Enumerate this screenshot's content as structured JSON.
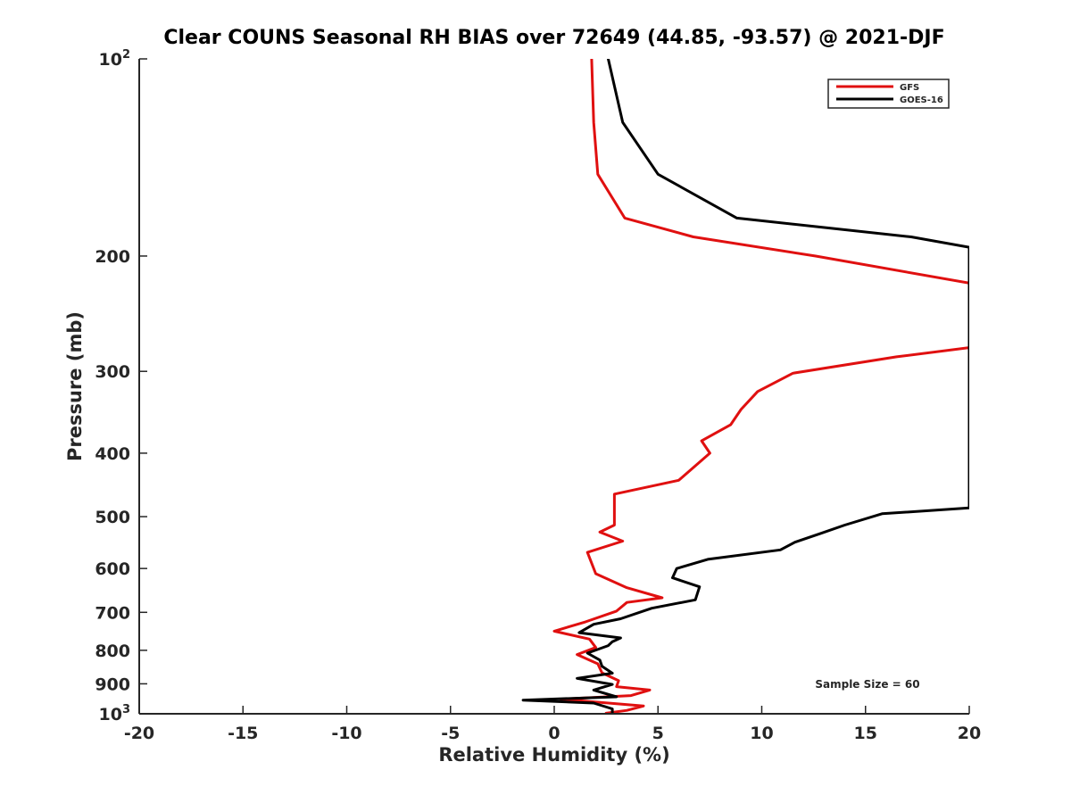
{
  "chart_data": {
    "type": "line",
    "title": "Clear COUNS Seasonal RH BIAS over 72649 (44.85, -93.57) @ 2021-DJF",
    "xlabel": "Relative Humidity (%)",
    "ylabel": "Pressure (mb)",
    "xlim": [
      -20,
      20
    ],
    "ylim": [
      100,
      1000
    ],
    "yscale": "log",
    "y_reversed": true,
    "x_ticks": [
      "-20",
      "-15",
      "-10",
      "-5",
      "0",
      "5",
      "10",
      "15",
      "20"
    ],
    "y_ticks": [
      {
        "value": 100,
        "base": "10",
        "exp": "2"
      },
      {
        "value": 200,
        "label": "200"
      },
      {
        "value": 300,
        "label": "300"
      },
      {
        "value": 400,
        "label": "400"
      },
      {
        "value": 500,
        "label": "500"
      },
      {
        "value": 600,
        "label": "600"
      },
      {
        "value": 700,
        "label": "700"
      },
      {
        "value": 800,
        "label": "800"
      },
      {
        "value": 900,
        "label": "900"
      },
      {
        "value": 1000,
        "base": "10",
        "exp": "3"
      }
    ],
    "legend_position": "top-right",
    "annotation": "Sample Size = 60",
    "series": [
      {
        "name": "GFS",
        "color": "#e01010",
        "points": [
          [
            1.8,
            100
          ],
          [
            1.9,
            125
          ],
          [
            2.1,
            150
          ],
          [
            3.4,
            175
          ],
          [
            6.7,
            187
          ],
          [
            12.6,
            200
          ],
          [
            20.0,
            220
          ],
          [
            20.0,
            276
          ],
          [
            16.5,
            285
          ],
          [
            11.5,
            302
          ],
          [
            9.8,
            322
          ],
          [
            9.0,
            343
          ],
          [
            8.5,
            362
          ],
          [
            7.1,
            383
          ],
          [
            7.5,
            400
          ],
          [
            6.0,
            440
          ],
          [
            2.9,
            462
          ],
          [
            2.9,
            515
          ],
          [
            2.2,
            528
          ],
          [
            3.3,
            545
          ],
          [
            1.6,
            567
          ],
          [
            2.0,
            611
          ],
          [
            3.5,
            642
          ],
          [
            5.2,
            665
          ],
          [
            3.5,
            676
          ],
          [
            3.0,
            697
          ],
          [
            1.5,
            724
          ],
          [
            0.0,
            748
          ],
          [
            1.7,
            769
          ],
          [
            2.0,
            792
          ],
          [
            1.1,
            812
          ],
          [
            2.1,
            839
          ],
          [
            2.3,
            866
          ],
          [
            3.1,
            890
          ],
          [
            3.0,
            909
          ],
          [
            4.6,
            920
          ],
          [
            3.7,
            938
          ],
          [
            0.3,
            950
          ],
          [
            4.3,
            973
          ],
          [
            3.5,
            988
          ],
          [
            2.5,
            998
          ]
        ]
      },
      {
        "name": "GOES-16",
        "color": "#000000",
        "points": [
          [
            2.6,
            100
          ],
          [
            3.3,
            125
          ],
          [
            5.0,
            150
          ],
          [
            8.8,
            175
          ],
          [
            17.2,
            187
          ],
          [
            20.0,
            194
          ],
          [
            20.0,
            485
          ],
          [
            15.8,
            495
          ],
          [
            14.0,
            515
          ],
          [
            12.8,
            531
          ],
          [
            11.6,
            547
          ],
          [
            10.9,
            562
          ],
          [
            7.4,
            581
          ],
          [
            5.9,
            600
          ],
          [
            5.7,
            620
          ],
          [
            7.0,
            640
          ],
          [
            6.8,
            670
          ],
          [
            4.7,
            690
          ],
          [
            3.2,
            716
          ],
          [
            1.9,
            730
          ],
          [
            1.2,
            752
          ],
          [
            3.2,
            766
          ],
          [
            2.8,
            776
          ],
          [
            2.6,
            787
          ],
          [
            1.6,
            808
          ],
          [
            2.2,
            828
          ],
          [
            2.3,
            846
          ],
          [
            2.8,
            867
          ],
          [
            1.1,
            883
          ],
          [
            2.8,
            902
          ],
          [
            1.9,
            920
          ],
          [
            3.0,
            942
          ],
          [
            -1.5,
            953
          ],
          [
            1.9,
            963
          ],
          [
            2.8,
            983
          ],
          [
            2.8,
            998
          ]
        ]
      }
    ]
  }
}
